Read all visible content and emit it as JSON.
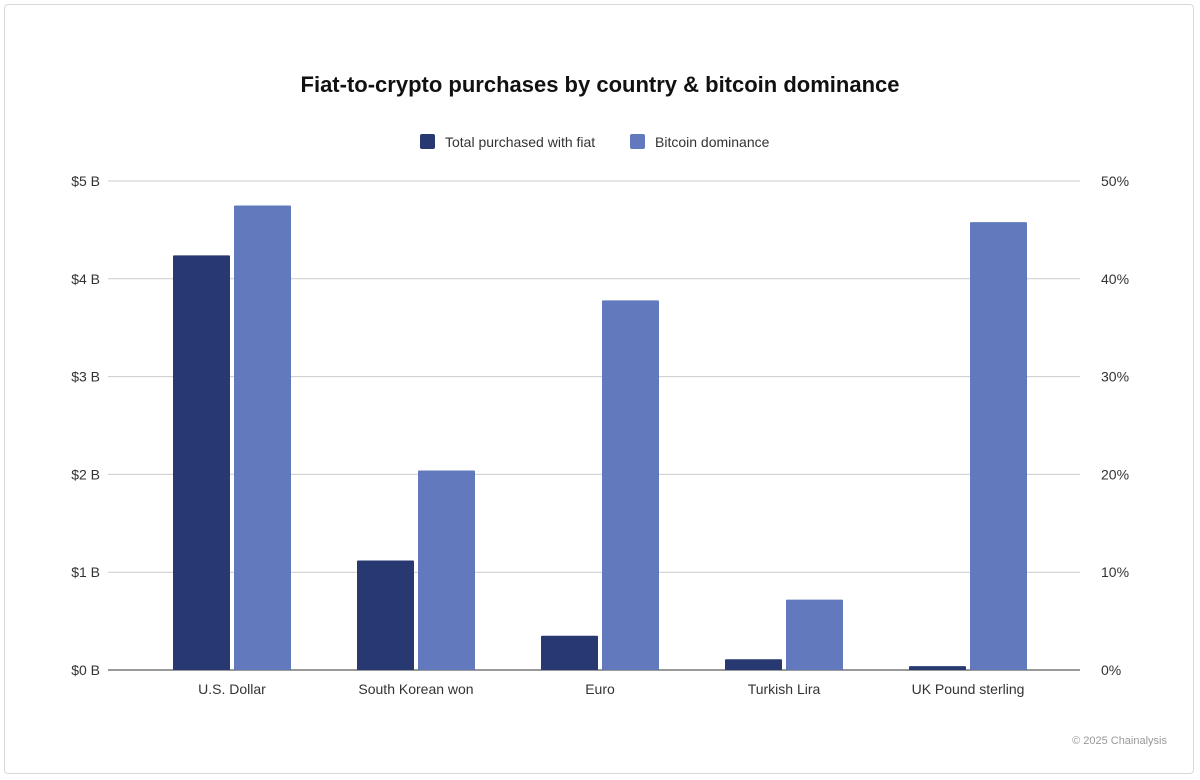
{
  "chart_data": {
    "type": "bar",
    "title": "Fiat-to-crypto purchases by country & bitcoin dominance",
    "categories": [
      "U.S. Dollar",
      "South Korean won",
      "Euro",
      "Turkish Lira",
      "UK Pound sterling"
    ],
    "series": [
      {
        "name": "Total purchased with fiat",
        "axis": "left",
        "unit": "$B",
        "color": "#283870",
        "values": [
          4.24,
          1.12,
          0.35,
          0.11,
          0.04
        ]
      },
      {
        "name": "Bitcoin dominance",
        "axis": "right",
        "unit": "%",
        "color": "#627abd",
        "values": [
          47.5,
          20.4,
          37.8,
          7.2,
          45.8
        ]
      }
    ],
    "y_left": {
      "range": [
        0,
        5
      ],
      "ticks": [
        "$0 B",
        "$1 B",
        "$2 B",
        "$3 B",
        "$4 B",
        "$5 B"
      ]
    },
    "y_right": {
      "range": [
        0,
        50
      ],
      "ticks": [
        "0%",
        "10%",
        "20%",
        "30%",
        "40%",
        "50%"
      ]
    },
    "grid": true,
    "legend_placement": "top-center"
  },
  "credit": "© 2025 Chainalysis"
}
